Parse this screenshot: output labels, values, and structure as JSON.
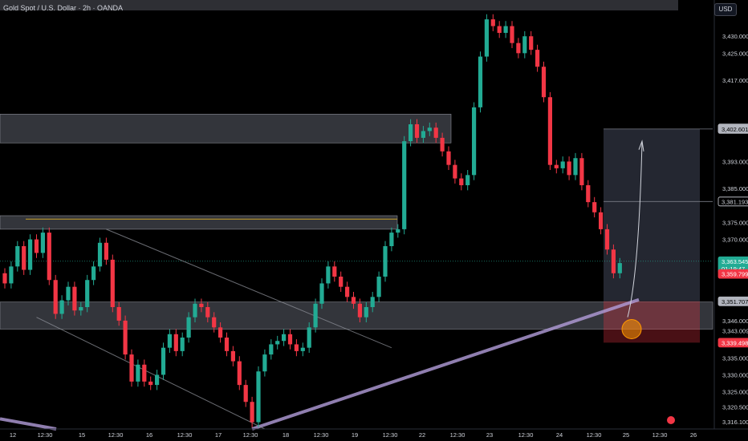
{
  "header": {
    "title": "Gold Spot / U.S. Dollar · 2h · OANDA",
    "currency_button": "USD"
  },
  "colors": {
    "up": "#22ab94",
    "down": "#f23645",
    "zone": "#5d606b",
    "trend": "#b39ddb",
    "target": "#787b86",
    "stop": "#f23645",
    "marker": "#ff9800"
  },
  "chart_data": {
    "type": "candlestick",
    "symbol": "Gold Spot / U.S. Dollar",
    "interval": "2h",
    "source": "OANDA",
    "ylim": [
      3314,
      3440
    ],
    "y_ticks": [
      3316.1,
      3320.5,
      3325.0,
      3330.0,
      3335.0,
      3339.498,
      3343.009,
      3346.0,
      3351.707,
      3359.799,
      3363.545,
      3370.0,
      3375.0,
      3381.193,
      3385.0,
      3393.0,
      3402.601,
      3402.747,
      3417.0,
      3425.0,
      3430.0
    ],
    "price_labels": [
      {
        "value": 3402.747,
        "text": "3,402.747",
        "style": "outline"
      },
      {
        "value": 3402.601,
        "text": "3,402.601",
        "style": "grey"
      },
      {
        "value": 3381.193,
        "text": "3,381.193",
        "style": "outline"
      },
      {
        "value": 3363.545,
        "text": "3,363.545",
        "sub": "01:19:47",
        "style": "green"
      },
      {
        "value": 3359.799,
        "text": "3,359.799",
        "style": "red"
      },
      {
        "value": 3351.707,
        "text": "3,351.707",
        "style": "grey"
      },
      {
        "value": 3339.498,
        "text": "3,339.498",
        "style": "red"
      }
    ],
    "x_ticks": [
      "12",
      "12:30",
      "15",
      "12:30",
      "16",
      "12:30",
      "17",
      "12:30",
      "18",
      "12:30",
      "19",
      "12:30",
      "22",
      "12:30",
      "23",
      "12:30",
      "24",
      "12:30",
      "25",
      "12:30",
      "26"
    ],
    "candles_close": [
      3357,
      3362,
      3368,
      3361,
      3370,
      3366,
      3372,
      3358,
      3348,
      3352,
      3356,
      3349,
      3350,
      3358,
      3362,
      3369,
      3364,
      3350,
      3346,
      3336,
      3328,
      3333,
      3328,
      3327,
      3330,
      3338,
      3342,
      3337,
      3341,
      3347,
      3351,
      3350,
      3347,
      3344,
      3341,
      3337,
      3334,
      3327,
      3322,
      3316,
      3331,
      3336,
      3339,
      3340,
      3342,
      3339,
      3337,
      3338,
      3344,
      3351,
      3357,
      3362,
      3359,
      3356,
      3353,
      3351,
      3347,
      3350,
      3353,
      3359,
      3368,
      3372,
      3373,
      3399,
      3404,
      3400,
      3402,
      3403,
      3400,
      3396,
      3392,
      3388,
      3386,
      3389,
      3409,
      3424,
      3435,
      3433,
      3431,
      3433,
      3428,
      3425,
      3430,
      3426,
      3421,
      3412,
      3392,
      3391,
      3393,
      3389,
      3394,
      3386,
      3381,
      3378,
      3373,
      3367,
      3360,
      3363
    ],
    "zones": [
      {
        "from": 3398.5,
        "to": 3407
      },
      {
        "from": 3373,
        "to": 3377
      },
      {
        "from": 3343.5,
        "to": 3351.5
      }
    ],
    "position": {
      "entry": 3351.707,
      "target": 3402.601,
      "stop": 3339.498,
      "mid": 3381.193,
      "current": 3363.545
    },
    "trendlines": [
      {
        "name": "main-support",
        "points": [
          [
            39,
            3314
          ],
          [
            100,
            3352.2
          ]
        ]
      },
      {
        "name": "channel-top",
        "points": [
          [
            16,
            3373
          ],
          [
            61,
            3338
          ]
        ]
      },
      {
        "name": "channel-bottom",
        "points": [
          [
            5,
            3347
          ],
          [
            41,
            3314
          ]
        ]
      }
    ]
  }
}
